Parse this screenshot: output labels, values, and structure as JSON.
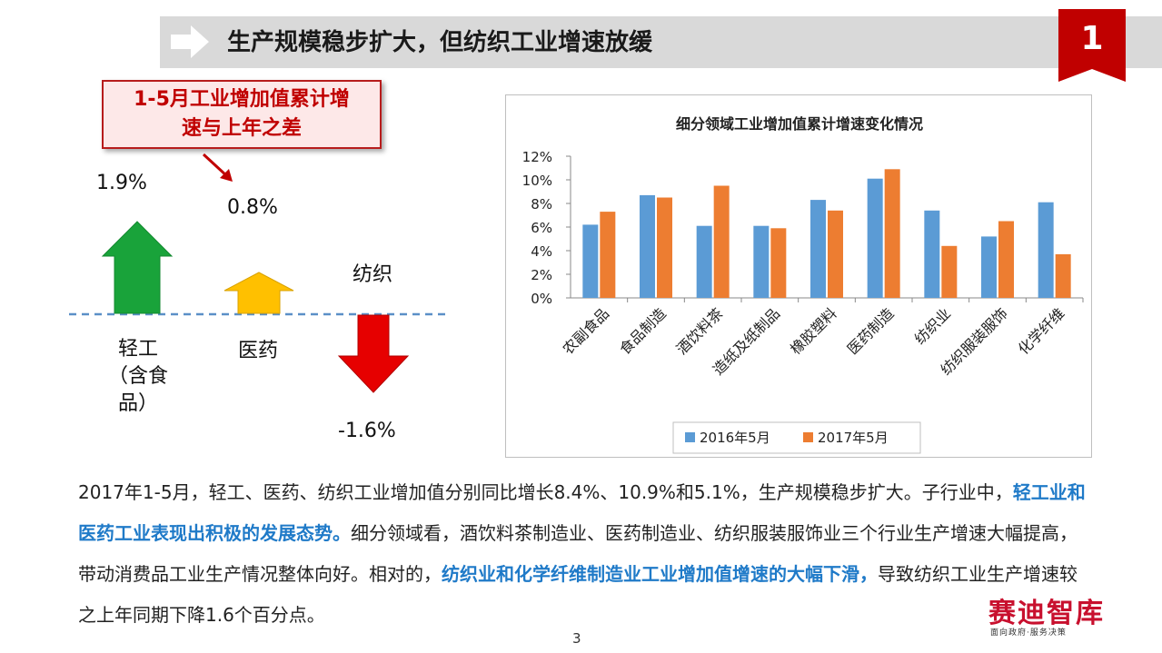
{
  "header": {
    "title": "生产规模稳步扩大，但纺织工业增速放缓",
    "badge": "1"
  },
  "callout": {
    "line1": "1-5月工业增加值累计增",
    "line2": "速与上年之差"
  },
  "left_panel": {
    "items": [
      {
        "value": "1.9%",
        "label_lines": [
          "轻工",
          "（含食",
          "品）"
        ],
        "color": "#19a33a"
      },
      {
        "value": "0.8%",
        "label_lines": [
          "医药"
        ],
        "color": "#ffc000"
      },
      {
        "value": "-1.6%",
        "label_lines": [
          "纺织"
        ],
        "color": "#e00000"
      }
    ]
  },
  "chart_data": {
    "type": "bar",
    "title": "细分领域工业增加值累计增速变化情况",
    "categories": [
      "农副食品",
      "食品制造",
      "酒饮料茶",
      "造纸及纸制品",
      "橡胶塑料",
      "医药制造",
      "纺织业",
      "纺织服装服饰",
      "化学纤维"
    ],
    "series": [
      {
        "name": "2016年5月",
        "color": "#5b9bd5",
        "values": [
          6.2,
          8.7,
          6.1,
          6.1,
          8.3,
          10.1,
          7.4,
          5.2,
          8.1
        ]
      },
      {
        "name": "2017年5月",
        "color": "#ed7d31",
        "values": [
          7.3,
          8.5,
          9.5,
          5.9,
          7.4,
          10.9,
          4.4,
          6.5,
          3.7
        ]
      }
    ],
    "y_ticks": [
      "0%",
      "2%",
      "4%",
      "6%",
      "8%",
      "10%",
      "12%"
    ],
    "ylim": [
      0,
      12
    ],
    "grid": false,
    "legend": "bottom"
  },
  "paragraph": {
    "p1": "2017年1-5月，轻工、医药、纺织工业增加值分别同比增长8.4%、10.9%和5.1%，生产规模稳步扩大。子行业中，",
    "p2": "轻工业和医药工业表现出积极的发展态势。",
    "p3": "细分领域看，酒饮料茶制造业、医药制造业、纺织服装服饰业三个行业生产增速大幅提高，带动消费品工业生产情况整体向好。相对的，",
    "p4": "纺织业和化学纤维制造业工业增加值增速的大幅下滑，",
    "p5": "导致纺织工业生产增速较之上年同期下降1.6个百分点。"
  },
  "footer": {
    "page": "3",
    "logo": "赛迪智库",
    "logo_sub": "面向政府·服务决策"
  }
}
